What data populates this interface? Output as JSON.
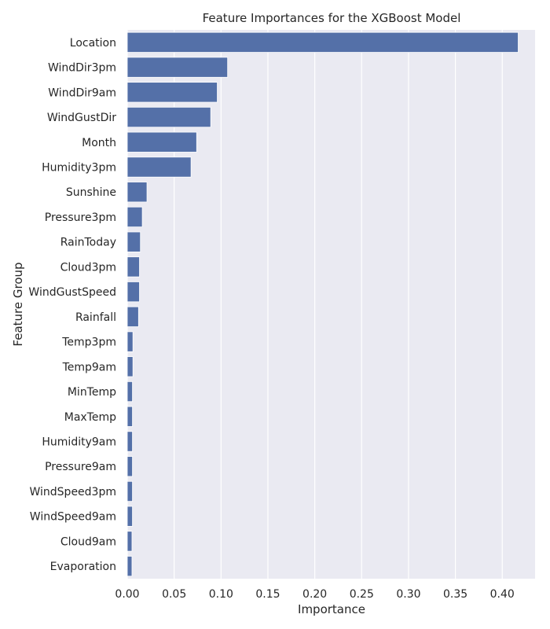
{
  "chart_data": {
    "type": "bar",
    "orientation": "horizontal",
    "title": "Feature Importances for the XGBoost Model",
    "xlabel": "Importance",
    "ylabel": "Feature Group",
    "xlim": [
      0,
      0.435
    ],
    "xticks": [
      0.0,
      0.05,
      0.1,
      0.15,
      0.2,
      0.25,
      0.3,
      0.35,
      0.4
    ],
    "xtick_labels": [
      "0.00",
      "0.05",
      "0.10",
      "0.15",
      "0.20",
      "0.25",
      "0.30",
      "0.35",
      "0.40"
    ],
    "grid": true,
    "colors": {
      "bar": "#5470a8",
      "background": "#eaeaf2",
      "grid": "#ffffff"
    },
    "categories": [
      "Location",
      "WindDir3pm",
      "WindDir9am",
      "WindGustDir",
      "Month",
      "Humidity3pm",
      "Sunshine",
      "Pressure3pm",
      "RainToday",
      "Cloud3pm",
      "WindGustSpeed",
      "Rainfall",
      "Temp3pm",
      "Temp9am",
      "MinTemp",
      "MaxTemp",
      "Humidity9am",
      "Pressure9am",
      "WindSpeed3pm",
      "WindSpeed9am",
      "Cloud9am",
      "Evaporation"
    ],
    "values": [
      0.417,
      0.107,
      0.096,
      0.089,
      0.074,
      0.068,
      0.021,
      0.016,
      0.014,
      0.013,
      0.013,
      0.012,
      0.006,
      0.006,
      0.0055,
      0.0055,
      0.0055,
      0.0055,
      0.0055,
      0.0055,
      0.005,
      0.005
    ]
  }
}
